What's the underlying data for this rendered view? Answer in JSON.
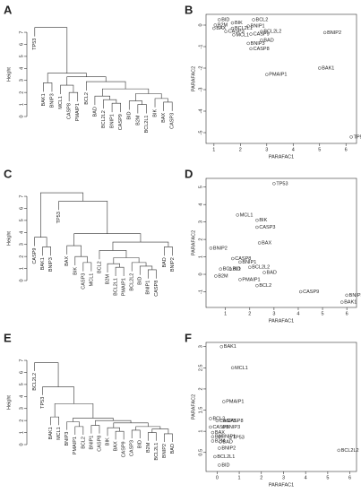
{
  "chart_data": [
    {
      "type": "dendrogram",
      "panel": "A",
      "ylabel": "Height",
      "ylim": [
        0,
        7.6
      ],
      "yticks": [
        0,
        1,
        2,
        3,
        4,
        5,
        6,
        7
      ],
      "tree": {
        "height": 7.4,
        "children": [
          "TP53",
          {
            "height": 3.6,
            "children": [
              {
                "height": 2.8,
                "children": [
                  "BAK1",
                  "BNIP3"
                ]
              },
              {
                "height": 3.3,
                "children": [
                  {
                    "height": 2.6,
                    "children": [
                      "MCL1",
                      {
                        "height": 2.0,
                        "children": [
                          "CASP8",
                          "PMAIP1"
                        ]
                      }
                    ]
                  },
                  {
                    "height": 2.9,
                    "children": [
                      "BCL2",
                      {
                        "height": 2.3,
                        "children": [
                          {
                            "height": 1.7,
                            "children": [
                              "BAD",
                              {
                                "height": 1.4,
                                "children": [
                                  "BCL2L2",
                                  {
                                    "height": 1.1,
                                    "children": [
                                      "BNIP1",
                                      "CASP9"
                                    ]
                                  }
                                ]
                              }
                            ]
                          },
                          {
                            "height": 1.9,
                            "children": [
                              {
                                "height": 1.3,
                                "children": [
                                  "BID",
                                  {
                                    "height": 1.0,
                                    "children": [
                                      "B2M",
                                      "BCL2L1"
                                    ]
                                  }
                                ]
                              },
                              {
                                "height": 1.5,
                                "children": [
                                  "BIK",
                                  {
                                    "height": 1.2,
                                    "children": [
                                      "BAX",
                                      "CASP3"
                                    ]
                                  }
                                ]
                              }
                            ]
                          }
                        ]
                      }
                    ]
                  }
                ]
              }
            ]
          }
        ]
      }
    },
    {
      "type": "scatter",
      "panel": "B",
      "xlabel": "PARAFAC1",
      "ylabel": "PARAFAC2",
      "xlim": [
        0.7,
        6.4
      ],
      "ylim": [
        -5.5,
        0.5
      ],
      "xticks": [
        1,
        2,
        3,
        4,
        5,
        6
      ],
      "yticks": [
        -5,
        -4,
        -3,
        -2,
        -1,
        0
      ],
      "points": [
        {
          "label": "BID",
          "x": 1.2,
          "y": 0.25
        },
        {
          "label": "BIK",
          "x": 1.7,
          "y": 0.1
        },
        {
          "label": "BCL2",
          "x": 2.5,
          "y": 0.25
        },
        {
          "label": "B2M",
          "x": 1.05,
          "y": 0.0
        },
        {
          "label": "BAX",
          "x": 1.0,
          "y": -0.15
        },
        {
          "label": "BCL2L1",
          "x": 1.7,
          "y": -0.15
        },
        {
          "label": "BNIP1",
          "x": 2.3,
          "y": -0.05
        },
        {
          "label": "CASP3",
          "x": 1.45,
          "y": -0.3
        },
        {
          "label": "BCL2L2",
          "x": 2.8,
          "y": -0.3
        },
        {
          "label": "MCL1",
          "x": 1.75,
          "y": -0.45
        },
        {
          "label": "CASP9",
          "x": 2.4,
          "y": -0.42
        },
        {
          "label": "BAD",
          "x": 2.8,
          "y": -0.7
        },
        {
          "label": "BNIP3",
          "x": 2.3,
          "y": -0.85
        },
        {
          "label": "CASP8",
          "x": 2.4,
          "y": -1.1
        },
        {
          "label": "BNIP2",
          "x": 5.2,
          "y": -0.35
        },
        {
          "label": "PMAIP1",
          "x": 3.0,
          "y": -2.3
        },
        {
          "label": "BAK1",
          "x": 5.0,
          "y": -2.0
        },
        {
          "label": "TP53",
          "x": 6.2,
          "y": -5.2
        }
      ]
    },
    {
      "type": "dendrogram",
      "panel": "C",
      "ylabel": "Height",
      "ylim": [
        0,
        7.6
      ],
      "yticks": [
        0,
        1,
        2,
        3,
        4,
        5,
        6,
        7
      ],
      "tree": {
        "height": 7.3,
        "children": [
          {
            "height": 3.6,
            "children": [
              "CASP9",
              {
                "height": 2.8,
                "children": [
                  "BAK1",
                  "BNIP3"
                ]
              }
            ]
          },
          {
            "height": 6.6,
            "children": [
              "TP53",
              {
                "height": 3.9,
                "children": [
                  {
                    "height": 2.9,
                    "children": [
                      "BAX",
                      {
                        "height": 2.0,
                        "children": [
                          "BIK",
                          {
                            "height": 1.5,
                            "children": [
                              "CASP3",
                              "MCL1"
                            ]
                          }
                        ]
                      }
                    ]
                  },
                  {
                    "height": 3.2,
                    "children": [
                      {
                        "height": 2.5,
                        "children": [
                          "BCL2",
                          {
                            "height": 1.9,
                            "children": [
                              {
                                "height": 1.4,
                                "children": [
                                  "B2M",
                                  {
                                    "height": 1.1,
                                    "children": [
                                      "BCL2L1",
                                      "PMAIP1"
                                    ]
                                  }
                                ]
                              },
                              {
                                "height": 1.5,
                                "children": [
                                  "BCL2L2",
                                  {
                                    "height": 1.2,
                                    "children": [
                                      "BID",
                                      {
                                        "height": 0.9,
                                        "children": [
                                          "BNIP1",
                                          "CASP8"
                                        ]
                                      }
                                    ]
                                  }
                                ]
                              }
                            ]
                          }
                        ]
                      },
                      {
                        "height": 2.8,
                        "children": [
                          "BAD",
                          "BNIP2"
                        ]
                      }
                    ]
                  }
                ]
              }
            ]
          }
        ]
      }
    },
    {
      "type": "scatter",
      "panel": "D",
      "xlabel": "PARAFAC1",
      "ylabel": "PARAFAC2",
      "xlim": [
        0.2,
        6.4
      ],
      "ylim": [
        -1.9,
        5.5
      ],
      "xticks": [
        1,
        2,
        3,
        4,
        5,
        6
      ],
      "yticks": [
        -1,
        0,
        1,
        2,
        3,
        4,
        5
      ],
      "points": [
        {
          "label": "TP53",
          "x": 3.0,
          "y": 5.2
        },
        {
          "label": "MCL1",
          "x": 1.5,
          "y": 3.4
        },
        {
          "label": "BIK",
          "x": 2.3,
          "y": 3.1
        },
        {
          "label": "CASP3",
          "x": 2.3,
          "y": 2.7
        },
        {
          "label": "BAX",
          "x": 2.4,
          "y": 1.8
        },
        {
          "label": "BNIP2",
          "x": 0.4,
          "y": 1.5
        },
        {
          "label": "CASP8",
          "x": 1.3,
          "y": 0.9
        },
        {
          "label": "BNIP1",
          "x": 1.6,
          "y": 0.7
        },
        {
          "label": "BCL2L2",
          "x": 2.0,
          "y": 0.4
        },
        {
          "label": "BCL2L1",
          "x": 0.8,
          "y": 0.3
        },
        {
          "label": "BID",
          "x": 1.2,
          "y": 0.3
        },
        {
          "label": "BAD",
          "x": 2.6,
          "y": 0.1
        },
        {
          "label": "B2M",
          "x": 0.6,
          "y": -0.1
        },
        {
          "label": "PMAIP1",
          "x": 1.6,
          "y": -0.3
        },
        {
          "label": "BCL2",
          "x": 2.3,
          "y": -0.65
        },
        {
          "label": "CASP9",
          "x": 4.1,
          "y": -1.0
        },
        {
          "label": "BNIP3",
          "x": 6.0,
          "y": -1.2
        },
        {
          "label": "BAK1",
          "x": 5.8,
          "y": -1.6
        }
      ]
    },
    {
      "type": "dendrogram",
      "panel": "E",
      "ylabel": "Height",
      "ylim": [
        0,
        7.6
      ],
      "yticks": [
        0,
        1,
        2,
        3,
        4,
        5,
        6,
        7
      ],
      "tree": {
        "height": 6.8,
        "children": [
          "BCL2L2",
          {
            "height": 4.8,
            "children": [
              "TP53",
              {
                "height": 3.4,
                "children": [
                  {
                    "height": 2.3,
                    "children": [
                      "BAK1",
                      "MCL1"
                    ]
                  },
                  {
                    "height": 2.2,
                    "children": [
                      {
                        "height": 1.9,
                        "children": [
                          "BNIP3",
                          {
                            "height": 1.5,
                            "children": [
                              "PMAIP1",
                              "BCL2"
                            ]
                          }
                        ]
                      },
                      {
                        "height": 2.0,
                        "children": [
                          {
                            "height": 1.6,
                            "children": [
                              "BNIP1",
                              "CASP8"
                            ]
                          },
                          {
                            "height": 1.8,
                            "children": [
                              {
                                "height": 1.4,
                                "children": [
                                  "BIK",
                                  {
                                    "height": 1.1,
                                    "children": [
                                      "BAX",
                                      "CASP9"
                                    ]
                                  }
                                ]
                              },
                              {
                                "height": 1.5,
                                "children": [
                                  {
                                    "height": 1.2,
                                    "children": [
                                      "CASP3",
                                      "BID"
                                    ]
                                  },
                                  {
                                    "height": 1.3,
                                    "children": [
                                      {
                                        "height": 1.0,
                                        "children": [
                                          "B2M",
                                          "BCL2L1"
                                        ]
                                      },
                                      {
                                        "height": 0.9,
                                        "children": [
                                          "BNIP2",
                                          "BAD"
                                        ]
                                      }
                                    ]
                                  }
                                ]
                              }
                            ]
                          }
                        ]
                      }
                    ]
                  }
                ]
              }
            ]
          }
        ]
      }
    },
    {
      "type": "scatter",
      "panel": "F",
      "xlabel": "PARAFAC1",
      "ylabel": "PARAFAC2",
      "xlim": [
        -0.5,
        6.3
      ],
      "ylim": [
        0.05,
        3.1
      ],
      "xticks": [
        0,
        1,
        2,
        3,
        4,
        5,
        6
      ],
      "yticks": [
        0.5,
        1.0,
        1.5,
        2.0,
        2.5,
        3.0
      ],
      "points": [
        {
          "label": "BAK1",
          "x": 0.2,
          "y": 3.0
        },
        {
          "label": "MCL1",
          "x": 0.7,
          "y": 2.5
        },
        {
          "label": "PMAIP1",
          "x": 0.3,
          "y": 1.7
        },
        {
          "label": "BCL2",
          "x": -0.3,
          "y": 1.3
        },
        {
          "label": "CASP3",
          "x": 0.0,
          "y": 1.25
        },
        {
          "label": "CASP8",
          "x": 0.35,
          "y": 1.25
        },
        {
          "label": "CASP9",
          "x": -0.3,
          "y": 1.1
        },
        {
          "label": "BNIP3",
          "x": 0.3,
          "y": 1.1
        },
        {
          "label": "BAX",
          "x": -0.2,
          "y": 0.97
        },
        {
          "label": "BIK",
          "x": -0.2,
          "y": 0.87
        },
        {
          "label": "BNIP1",
          "x": 0.1,
          "y": 0.87
        },
        {
          "label": "TP53",
          "x": 0.6,
          "y": 0.85
        },
        {
          "label": "B2M",
          "x": -0.2,
          "y": 0.77
        },
        {
          "label": "BAD",
          "x": 0.15,
          "y": 0.75
        },
        {
          "label": "BNIP2",
          "x": 0.1,
          "y": 0.6
        },
        {
          "label": "BCL2L1",
          "x": -0.1,
          "y": 0.4
        },
        {
          "label": "BID",
          "x": 0.1,
          "y": 0.2
        },
        {
          "label": "BCL2L2",
          "x": 5.5,
          "y": 0.55
        }
      ]
    }
  ]
}
